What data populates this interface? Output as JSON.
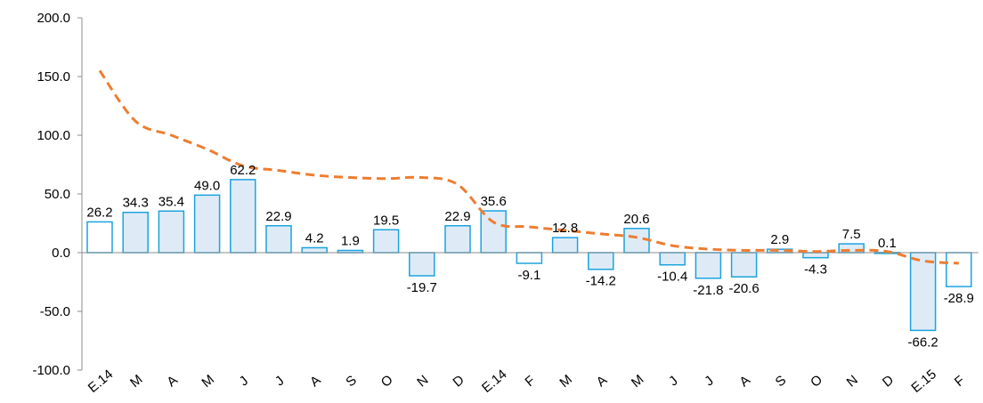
{
  "chart_data": {
    "type": "bar",
    "title": "",
    "xlabel": "",
    "ylabel": "",
    "ylim": [
      -100,
      200
    ],
    "yticks": [
      "200.0",
      "150.0",
      "100.0",
      "50.0",
      "0.0",
      "-50.0",
      "-100.0"
    ],
    "ytick_values": [
      200,
      150,
      100,
      50,
      0,
      -50,
      -100
    ],
    "grid": false,
    "legend": "none",
    "categories": [
      "E.14",
      "M",
      "A",
      "M",
      "J",
      "J",
      "A",
      "S",
      "O",
      "N",
      "D",
      "E.14",
      "F",
      "M",
      "A",
      "M",
      "J",
      "J",
      "A",
      "S",
      "O",
      "N",
      "D",
      "E.15",
      "F"
    ],
    "series": [
      {
        "type": "bar",
        "values": [
          26.2,
          34.3,
          35.4,
          49.0,
          62.2,
          22.9,
          4.2,
          1.9,
          19.5,
          -19.7,
          22.9,
          35.6,
          -9.1,
          12.8,
          -14.2,
          20.6,
          -10.4,
          -21.8,
          -20.6,
          2.9,
          -4.3,
          7.5,
          0.1,
          -66.2,
          -28.9
        ],
        "labels": [
          "26.2",
          "34.3",
          "35.4",
          "49.0",
          "62.2",
          "22.9",
          "4.2",
          "1.9",
          "19.5",
          "-19.7",
          "22.9",
          "35.6",
          "-9.1",
          "12.8",
          "-14.2",
          "20.6",
          "-10.4",
          "-21.8",
          "-20.6",
          "2.9",
          "-4.3",
          "7.5",
          "0.1",
          "-66.2",
          "-28.9"
        ],
        "fills": [
          "#ffffff",
          "#deebf7",
          "#deebf7",
          "#deebf7",
          "#deebf7",
          "#deebf7",
          "#deebf7",
          "#deebf7",
          "#deebf7",
          "#deebf7",
          "#deebf7",
          "#deebf7",
          "#ffffff",
          "#deebf7",
          "#deebf7",
          "#deebf7",
          "#deebf7",
          "#deebf7",
          "#deebf7",
          "#deebf7",
          "#deebf7",
          "#deebf7",
          "#deebf7",
          "#deebf7",
          "#ffffff"
        ]
      },
      {
        "type": "line",
        "style": "dashed",
        "values": [
          155,
          112,
          100,
          88,
          74,
          70,
          66,
          64,
          63,
          64,
          58,
          26,
          22,
          19,
          16,
          13,
          6,
          3,
          2,
          2,
          1,
          2,
          1,
          -7,
          -9
        ]
      }
    ],
    "colors": {
      "bar_stroke": "#1ca3de",
      "line": "#ed7d31",
      "axis": "#8c8c8c"
    }
  }
}
